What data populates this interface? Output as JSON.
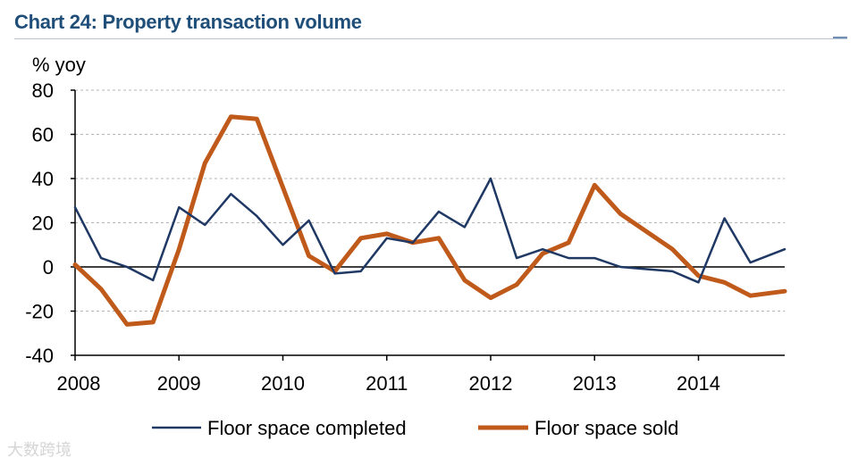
{
  "chart_data": {
    "type": "line",
    "title": "Chart 24: Property transaction volume",
    "ylabel": "% yoy",
    "xlabel": "",
    "ylim": [
      -40,
      80
    ],
    "yticks": [
      80,
      60,
      40,
      20,
      0,
      -20,
      -40
    ],
    "xlim": [
      2008,
      2014.83
    ],
    "xticks": [
      2008,
      2009,
      2010,
      2011,
      2012,
      2013,
      2014
    ],
    "grid": true,
    "legend_position": "bottom",
    "series": [
      {
        "name": "Floor space completed",
        "color": "#1f3864",
        "x": [
          2008.0,
          2008.25,
          2008.5,
          2008.75,
          2009.0,
          2009.25,
          2009.5,
          2009.75,
          2010.0,
          2010.25,
          2010.5,
          2010.75,
          2011.0,
          2011.25,
          2011.5,
          2011.75,
          2012.0,
          2012.25,
          2012.5,
          2012.75,
          2013.0,
          2013.25,
          2013.5,
          2013.75,
          2014.0,
          2014.25,
          2014.5,
          2014.83
        ],
        "values": [
          27,
          4,
          0,
          -6,
          27,
          19,
          33,
          23,
          10,
          21,
          -3,
          -2,
          13,
          11,
          25,
          18,
          40,
          4,
          8,
          4,
          4,
          0,
          -1,
          -2,
          -7,
          22,
          2,
          8
        ]
      },
      {
        "name": "Floor space sold",
        "color": "#c05a1b",
        "x": [
          2008.0,
          2008.25,
          2008.5,
          2008.75,
          2009.0,
          2009.25,
          2009.5,
          2009.75,
          2010.0,
          2010.25,
          2010.5,
          2010.75,
          2011.0,
          2011.25,
          2011.5,
          2011.75,
          2012.0,
          2012.25,
          2012.5,
          2012.75,
          2013.0,
          2013.25,
          2013.5,
          2013.75,
          2014.0,
          2014.25,
          2014.5,
          2014.83
        ],
        "values": [
          1,
          -10,
          -26,
          -25,
          8,
          47,
          68,
          67,
          36,
          5,
          -2,
          13,
          15,
          11,
          13,
          -6,
          -14,
          -8,
          6,
          11,
          37,
          24,
          16,
          8,
          -4,
          -7,
          -13,
          -11
        ]
      }
    ]
  },
  "watermark": "大数跨境"
}
